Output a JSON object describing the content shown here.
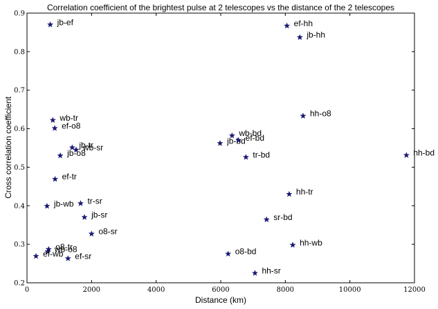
{
  "chart_data": {
    "type": "scatter",
    "title": "Correlation coefficient of the brightest pulse at 2 telescopes vs the distance of the 2 telescopes",
    "xlabel": "Distance (km)",
    "ylabel": "Cross correlation coefficient",
    "xlim": [
      0,
      12000
    ],
    "ylim": [
      0.2,
      0.9
    ],
    "x_ticks": [
      0,
      2000,
      4000,
      6000,
      8000,
      10000,
      12000
    ],
    "y_ticks": [
      0.2,
      0.3,
      0.4,
      0.5,
      0.6,
      0.7,
      0.8,
      0.9
    ],
    "grid": false,
    "marker": "star",
    "marker_color": "#191970",
    "points": [
      {
        "label": "jb-ef",
        "x": 720,
        "y": 0.87
      },
      {
        "label": "ef-hh",
        "x": 8050,
        "y": 0.867
      },
      {
        "label": "jb-hh",
        "x": 8450,
        "y": 0.837
      },
      {
        "label": "hh-o8",
        "x": 8550,
        "y": 0.633
      },
      {
        "label": "wb-tr",
        "x": 800,
        "y": 0.622
      },
      {
        "label": "ef-o8",
        "x": 860,
        "y": 0.601
      },
      {
        "label": "wb-bd",
        "x": 6350,
        "y": 0.582
      },
      {
        "label": "jb-bd",
        "x": 5980,
        "y": 0.562
      },
      {
        "label": "ef-bd",
        "x": 6550,
        "y": 0.57
      },
      {
        "label": "jb-tr",
        "x": 1400,
        "y": 0.551
      },
      {
        "label": "wb-sr",
        "x": 1520,
        "y": 0.545
      },
      {
        "label": "jb-o8",
        "x": 1030,
        "y": 0.53
      },
      {
        "label": "tr-bd",
        "x": 6780,
        "y": 0.526
      },
      {
        "label": "hh-bd",
        "x": 11750,
        "y": 0.531
      },
      {
        "label": "ef-tr",
        "x": 870,
        "y": 0.469
      },
      {
        "label": "hh-tr",
        "x": 8120,
        "y": 0.43
      },
      {
        "label": "tr-sr",
        "x": 1660,
        "y": 0.406
      },
      {
        "label": "jb-wb",
        "x": 620,
        "y": 0.399
      },
      {
        "label": "jb-sr",
        "x": 1780,
        "y": 0.37
      },
      {
        "label": "sr-bd",
        "x": 7420,
        "y": 0.364
      },
      {
        "label": "o8-sr",
        "x": 2000,
        "y": 0.327
      },
      {
        "label": "hh-wb",
        "x": 8230,
        "y": 0.298
      },
      {
        "label": "o8-tr",
        "x": 670,
        "y": 0.287
      },
      {
        "label": "wb-o8",
        "x": 640,
        "y": 0.281
      },
      {
        "label": "o8-bd",
        "x": 6230,
        "y": 0.275
      },
      {
        "label": "ef-wb",
        "x": 280,
        "y": 0.269
      },
      {
        "label": "ef-sr",
        "x": 1270,
        "y": 0.263
      },
      {
        "label": "hh-sr",
        "x": 7060,
        "y": 0.225
      }
    ]
  }
}
